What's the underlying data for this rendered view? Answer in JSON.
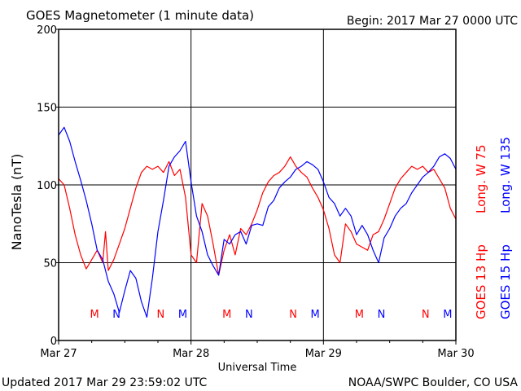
{
  "header": {
    "title": "GOES Magnetometer (1 minute data)",
    "begin": "Begin:  2017 Mar 27 0000 UTC"
  },
  "footer": {
    "updated": "Updated 2017 Mar 29 23:59:02 UTC",
    "source": "NOAA/SWPC Boulder, CO USA"
  },
  "colors": {
    "goes13": "#ff0000",
    "goes15": "#0000ff",
    "axis": "#000000",
    "background": "#ffffff"
  },
  "chart_data": {
    "type": "line",
    "title": "GOES Magnetometer (1 minute data)",
    "xlabel": "Universal Time",
    "ylabel": "NanoTesla (nT)",
    "ylim": [
      0,
      200
    ],
    "yticks": [
      0,
      50,
      100,
      150,
      200
    ],
    "xlim_hours": [
      0,
      72
    ],
    "xticks": [
      {
        "hour": 0,
        "label": "Mar 27"
      },
      {
        "hour": 24,
        "label": "Mar 28"
      },
      {
        "hour": 48,
        "label": "Mar 29"
      },
      {
        "hour": 72,
        "label": "Mar 30"
      }
    ],
    "grid": true,
    "legend_position": "right",
    "series": [
      {
        "name": "GOES 13 Hp",
        "longitude": "Long. W 75",
        "color": "#ff0000",
        "points": [
          [
            0,
            104
          ],
          [
            1,
            100
          ],
          [
            2,
            85
          ],
          [
            3,
            68
          ],
          [
            4,
            55
          ],
          [
            5,
            46
          ],
          [
            6,
            52
          ],
          [
            7,
            58
          ],
          [
            8,
            50
          ],
          [
            8.5,
            70
          ],
          [
            9,
            45
          ],
          [
            10,
            52
          ],
          [
            11,
            62
          ],
          [
            12,
            72
          ],
          [
            13,
            85
          ],
          [
            14,
            98
          ],
          [
            15,
            108
          ],
          [
            16,
            112
          ],
          [
            17,
            110
          ],
          [
            18,
            112
          ],
          [
            19,
            108
          ],
          [
            20,
            115
          ],
          [
            21,
            106
          ],
          [
            22,
            110
          ],
          [
            23,
            92
          ],
          [
            24,
            55
          ],
          [
            25,
            50
          ],
          [
            26,
            88
          ],
          [
            27,
            80
          ],
          [
            28,
            62
          ],
          [
            29,
            42
          ],
          [
            30,
            58
          ],
          [
            31,
            68
          ],
          [
            32,
            55
          ],
          [
            33,
            72
          ],
          [
            34,
            68
          ],
          [
            35,
            75
          ],
          [
            36,
            84
          ],
          [
            37,
            95
          ],
          [
            38,
            102
          ],
          [
            39,
            106
          ],
          [
            40,
            108
          ],
          [
            41,
            112
          ],
          [
            42,
            118
          ],
          [
            43,
            112
          ],
          [
            44,
            108
          ],
          [
            45,
            105
          ],
          [
            46,
            98
          ],
          [
            47,
            92
          ],
          [
            48,
            84
          ],
          [
            49,
            72
          ],
          [
            50,
            55
          ],
          [
            51,
            50
          ],
          [
            52,
            75
          ],
          [
            53,
            70
          ],
          [
            54,
            62
          ],
          [
            55,
            60
          ],
          [
            56,
            58
          ],
          [
            57,
            68
          ],
          [
            58,
            70
          ],
          [
            59,
            78
          ],
          [
            60,
            88
          ],
          [
            61,
            98
          ],
          [
            62,
            104
          ],
          [
            63,
            108
          ],
          [
            64,
            112
          ],
          [
            65,
            110
          ],
          [
            66,
            112
          ],
          [
            67,
            108
          ],
          [
            68,
            110
          ],
          [
            69,
            104
          ],
          [
            70,
            98
          ],
          [
            71,
            85
          ],
          [
            72,
            78
          ]
        ],
        "markers": [
          {
            "hour": 6.5,
            "label": "M"
          },
          {
            "hour": 18.5,
            "label": "N"
          },
          {
            "hour": 30.5,
            "label": "M"
          },
          {
            "hour": 42.5,
            "label": "N"
          },
          {
            "hour": 54.5,
            "label": "M"
          },
          {
            "hour": 66.5,
            "label": "N"
          }
        ]
      },
      {
        "name": "GOES 15 Hp",
        "longitude": "Long. W 135",
        "color": "#0000ff",
        "points": [
          [
            0,
            132
          ],
          [
            1,
            137
          ],
          [
            2,
            128
          ],
          [
            3,
            115
          ],
          [
            4,
            103
          ],
          [
            5,
            90
          ],
          [
            6,
            75
          ],
          [
            7,
            58
          ],
          [
            8,
            52
          ],
          [
            9,
            38
          ],
          [
            10,
            30
          ],
          [
            11,
            18
          ],
          [
            12,
            32
          ],
          [
            13,
            45
          ],
          [
            14,
            40
          ],
          [
            15,
            25
          ],
          [
            16,
            15
          ],
          [
            17,
            40
          ],
          [
            18,
            70
          ],
          [
            19,
            90
          ],
          [
            20,
            112
          ],
          [
            21,
            118
          ],
          [
            22,
            122
          ],
          [
            23,
            128
          ],
          [
            24,
            102
          ],
          [
            25,
            80
          ],
          [
            26,
            70
          ],
          [
            27,
            55
          ],
          [
            28,
            48
          ],
          [
            29,
            42
          ],
          [
            30,
            65
          ],
          [
            31,
            62
          ],
          [
            32,
            68
          ],
          [
            33,
            70
          ],
          [
            34,
            62
          ],
          [
            35,
            74
          ],
          [
            36,
            75
          ],
          [
            37,
            74
          ],
          [
            38,
            86
          ],
          [
            39,
            90
          ],
          [
            40,
            98
          ],
          [
            41,
            102
          ],
          [
            42,
            105
          ],
          [
            43,
            110
          ],
          [
            44,
            112
          ],
          [
            45,
            115
          ],
          [
            46,
            113
          ],
          [
            47,
            110
          ],
          [
            48,
            102
          ],
          [
            49,
            92
          ],
          [
            50,
            88
          ],
          [
            51,
            80
          ],
          [
            52,
            85
          ],
          [
            53,
            80
          ],
          [
            54,
            68
          ],
          [
            55,
            74
          ],
          [
            56,
            68
          ],
          [
            57,
            58
          ],
          [
            58,
            50
          ],
          [
            59,
            66
          ],
          [
            60,
            72
          ],
          [
            61,
            80
          ],
          [
            62,
            85
          ],
          [
            63,
            88
          ],
          [
            64,
            95
          ],
          [
            65,
            100
          ],
          [
            66,
            105
          ],
          [
            67,
            108
          ],
          [
            68,
            112
          ],
          [
            69,
            118
          ],
          [
            70,
            120
          ],
          [
            71,
            117
          ],
          [
            72,
            110
          ]
        ],
        "markers": [
          {
            "hour": 10.5,
            "label": "N"
          },
          {
            "hour": 22.5,
            "label": "M"
          },
          {
            "hour": 34.5,
            "label": "N"
          },
          {
            "hour": 46.5,
            "label": "M"
          },
          {
            "hour": 58.5,
            "label": "N"
          },
          {
            "hour": 70.5,
            "label": "M"
          }
        ]
      }
    ]
  }
}
